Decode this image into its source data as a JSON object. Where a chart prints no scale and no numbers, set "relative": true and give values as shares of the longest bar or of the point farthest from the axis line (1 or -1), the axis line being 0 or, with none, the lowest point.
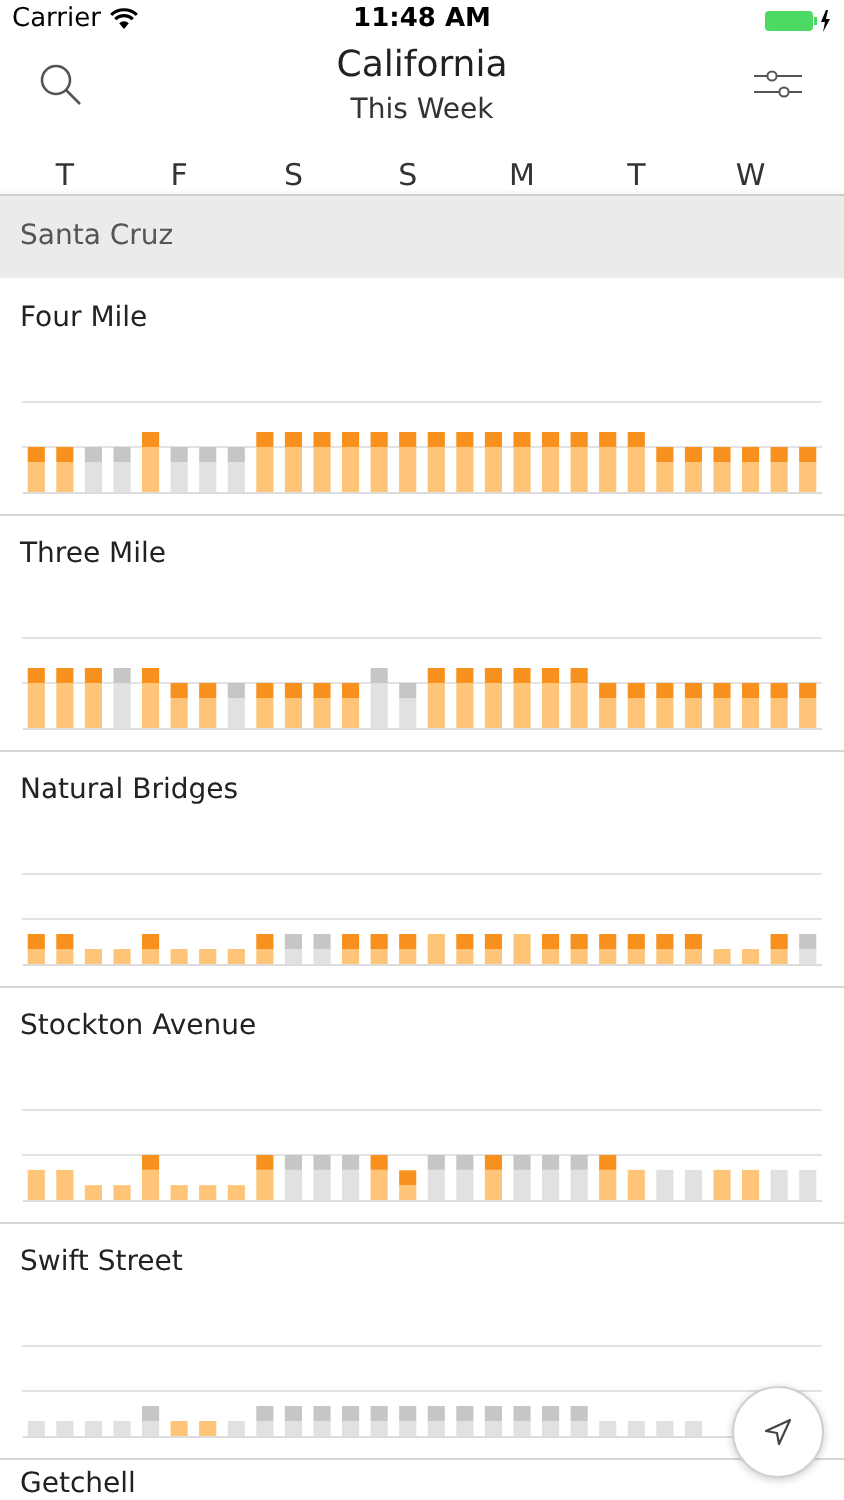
{
  "chart_data": [
    {
      "type": "other",
      "title": "California",
      "subtitle": "This Week",
      "annotations": [
        "Carrier",
        "11:48 AM",
        "Santa Cruz"
      ]
    },
    {
      "type": "bar",
      "title": "Four Mile",
      "relative": true,
      "stacked": true,
      "tick_labels": "x",
      "categories": [
        null,
        "T",
        null,
        null,
        null,
        "F",
        null,
        null,
        null,
        "S",
        null,
        null,
        null,
        "S",
        null,
        null,
        null,
        "M",
        null,
        null,
        null,
        "T",
        null,
        null,
        null,
        "W",
        null,
        null
      ],
      "ref_lines": [
        {
          "axis": "y",
          "value": 0.75,
          "color": "#e3e3e3"
        },
        {
          "axis": "y",
          "value": 1.5,
          "color": "#e3e3e3"
        }
      ],
      "series": [
        {
          "values": [
            0.5,
            0.5,
            0.5,
            0.5,
            0.75,
            0.5,
            0.5,
            0.5,
            0.75,
            0.75,
            0.75,
            0.75,
            0.75,
            0.75,
            0.75,
            0.75,
            0.75,
            0.75,
            0.75,
            0.75,
            0.75,
            0.75,
            0.5,
            0.5,
            0.5,
            0.5,
            0.5,
            0.5
          ],
          "colors": [
            "#fec477",
            "#fec477",
            "#e1e1e1",
            "#e1e1e1",
            "#fec477",
            "#e1e1e1",
            "#e1e1e1",
            "#e1e1e1",
            "#fec477",
            "#fec477",
            "#fec477",
            "#fec477",
            "#fec477",
            "#fec477",
            "#fec477",
            "#fec477",
            "#fec477",
            "#fec477",
            "#fec477",
            "#fec477",
            "#fec477",
            "#fec477",
            "#fec477",
            "#fec477",
            "#fec477",
            "#fec477",
            "#fec477",
            "#fec477"
          ]
        },
        {
          "values": [
            0.25,
            0.25,
            0.25,
            0.25,
            0.25,
            0.25,
            0.25,
            0.25,
            0.25,
            0.25,
            0.25,
            0.25,
            0.25,
            0.25,
            0.25,
            0.25,
            0.25,
            0.25,
            0.25,
            0.25,
            0.25,
            0.25,
            0.25,
            0.25,
            0.25,
            0.25,
            0.25,
            0.25
          ],
          "colors": [
            "#f8901d",
            "#f8901d",
            "#c6c6c6",
            "#c6c6c6",
            "#f8901d",
            "#c6c6c6",
            "#c6c6c6",
            "#c6c6c6",
            "#f8901d",
            "#f8901d",
            "#f8901d",
            "#f8901d",
            "#f8901d",
            "#f8901d",
            "#f8901d",
            "#f8901d",
            "#f8901d",
            "#f8901d",
            "#f8901d",
            "#f8901d",
            "#f8901d",
            "#f8901d",
            "#f8901d",
            "#f8901d",
            "#f8901d",
            "#f8901d",
            "#f8901d",
            "#f8901d"
          ]
        }
      ]
    },
    {
      "type": "bar",
      "title": "Three Mile",
      "relative": true,
      "stacked": true,
      "tick_labels": false,
      "categories": [
        null,
        null,
        null,
        null,
        null,
        null,
        null,
        null,
        null,
        null,
        null,
        null,
        null,
        null,
        null,
        null,
        null,
        null,
        null,
        null,
        null,
        null,
        null,
        null,
        null,
        null,
        null,
        null
      ],
      "ref_lines": [
        {
          "axis": "y",
          "value": 0.75,
          "color": "#e3e3e3"
        },
        {
          "axis": "y",
          "value": 1.5,
          "color": "#e3e3e3"
        }
      ],
      "series": [
        {
          "values": [
            0.75,
            0.75,
            0.75,
            0.75,
            0.75,
            0.5,
            0.5,
            0.5,
            0.5,
            0.5,
            0.5,
            0.5,
            0.75,
            0.5,
            0.75,
            0.75,
            0.75,
            0.75,
            0.75,
            0.75,
            0.5,
            0.5,
            0.5,
            0.5,
            0.5,
            0.5,
            0.5,
            0.5
          ],
          "colors": [
            "#fec477",
            "#fec477",
            "#fec477",
            "#e1e1e1",
            "#fec477",
            "#fec477",
            "#fec477",
            "#e1e1e1",
            "#fec477",
            "#fec477",
            "#fec477",
            "#fec477",
            "#e1e1e1",
            "#e1e1e1",
            "#fec477",
            "#fec477",
            "#fec477",
            "#fec477",
            "#fec477",
            "#fec477",
            "#fec477",
            "#fec477",
            "#fec477",
            "#fec477",
            "#fec477",
            "#fec477",
            "#fec477",
            "#fec477"
          ]
        },
        {
          "values": [
            0.25,
            0.25,
            0.25,
            0.25,
            0.25,
            0.25,
            0.25,
            0.25,
            0.25,
            0.25,
            0.25,
            0.25,
            0.25,
            0.25,
            0.25,
            0.25,
            0.25,
            0.25,
            0.25,
            0.25,
            0.25,
            0.25,
            0.25,
            0.25,
            0.25,
            0.25,
            0.25,
            0.25
          ],
          "colors": [
            "#f8901d",
            "#f8901d",
            "#f8901d",
            "#c6c6c6",
            "#f8901d",
            "#f8901d",
            "#f8901d",
            "#c6c6c6",
            "#f8901d",
            "#f8901d",
            "#f8901d",
            "#f8901d",
            "#c6c6c6",
            "#c6c6c6",
            "#f8901d",
            "#f8901d",
            "#f8901d",
            "#f8901d",
            "#f8901d",
            "#f8901d",
            "#f8901d",
            "#f8901d",
            "#f8901d",
            "#f8901d",
            "#f8901d",
            "#f8901d",
            "#f8901d",
            "#f8901d"
          ]
        }
      ]
    },
    {
      "type": "bar",
      "title": "Natural Bridges",
      "relative": true,
      "stacked": true,
      "tick_labels": false,
      "categories": [
        null,
        null,
        null,
        null,
        null,
        null,
        null,
        null,
        null,
        null,
        null,
        null,
        null,
        null,
        null,
        null,
        null,
        null,
        null,
        null,
        null,
        null,
        null,
        null,
        null,
        null,
        null,
        null
      ],
      "ref_lines": [
        {
          "axis": "y",
          "value": 1.5,
          "color": "#e3e3e3"
        },
        {
          "axis": "y",
          "value": 3,
          "color": "#e3e3e3"
        }
      ],
      "series": [
        {
          "values": [
            0.5,
            0.5,
            0.5,
            0.5,
            0.5,
            0.5,
            0.5,
            0.5,
            0.5,
            0.5,
            0.5,
            0.5,
            0.5,
            0.5,
            1,
            0.5,
            0.5,
            1,
            0.5,
            0.5,
            0.5,
            0.5,
            0.5,
            0.5,
            0.5,
            0.5,
            0.5,
            0.5
          ],
          "colors": [
            "#fec477",
            "#fec477",
            "#fec477",
            "#fec477",
            "#fec477",
            "#fec477",
            "#fec477",
            "#fec477",
            "#fec477",
            "#e1e1e1",
            "#e1e1e1",
            "#fec477",
            "#fec477",
            "#fec477",
            "#fec477",
            "#fec477",
            "#fec477",
            "#fec477",
            "#fec477",
            "#fec477",
            "#fec477",
            "#fec477",
            "#fec477",
            "#fec477",
            "#fec477",
            "#fec477",
            "#fec477",
            "#e1e1e1"
          ]
        },
        {
          "values": [
            0.5,
            0.5,
            null,
            null,
            0.5,
            null,
            null,
            null,
            0.5,
            0.5,
            0.5,
            0.5,
            0.5,
            0.5,
            null,
            0.5,
            0.5,
            null,
            0.5,
            0.5,
            0.5,
            0.5,
            0.5,
            0.5,
            null,
            null,
            0.5,
            0.5
          ],
          "colors": [
            "#f8901d",
            "#f8901d",
            null,
            null,
            "#f8901d",
            null,
            null,
            null,
            "#f8901d",
            "#c6c6c6",
            "#c6c6c6",
            "#f8901d",
            "#f8901d",
            "#f8901d",
            null,
            "#f8901d",
            "#f8901d",
            null,
            "#f8901d",
            "#f8901d",
            "#f8901d",
            "#f8901d",
            "#f8901d",
            "#f8901d",
            null,
            null,
            "#f8901d",
            "#c6c6c6"
          ]
        }
      ]
    },
    {
      "type": "bar",
      "title": "Stockton Avenue",
      "relative": true,
      "stacked": true,
      "tick_labels": false,
      "categories": [
        null,
        null,
        null,
        null,
        null,
        null,
        null,
        null,
        null,
        null,
        null,
        null,
        null,
        null,
        null,
        null,
        null,
        null,
        null,
        null,
        null,
        null,
        null,
        null,
        null,
        null,
        null,
        null
      ],
      "ref_lines": [
        {
          "axis": "y",
          "value": 1,
          "color": "#e3e3e3"
        },
        {
          "axis": "y",
          "value": 2,
          "color": "#e3e3e3"
        }
      ],
      "series": [
        {
          "values": [
            0.67,
            0.67,
            0.33,
            0.33,
            0.67,
            0.33,
            0.33,
            0.33,
            0.67,
            0.67,
            0.67,
            0.67,
            0.67,
            0.33,
            0.67,
            0.67,
            0.67,
            0.67,
            0.67,
            0.67,
            0.67,
            0.67,
            0.67,
            0.67,
            0.67,
            0.67,
            0.67,
            0.67
          ],
          "colors": [
            "#fec477",
            "#fec477",
            "#fec477",
            "#fec477",
            "#fec477",
            "#fec477",
            "#fec477",
            "#fec477",
            "#fec477",
            "#e1e1e1",
            "#e1e1e1",
            "#e1e1e1",
            "#fec477",
            "#fec477",
            "#e1e1e1",
            "#e1e1e1",
            "#fec477",
            "#e1e1e1",
            "#e1e1e1",
            "#e1e1e1",
            "#fec477",
            "#fec477",
            "#e1e1e1",
            "#e1e1e1",
            "#fec477",
            "#fec477",
            "#e1e1e1",
            "#e1e1e1"
          ]
        },
        {
          "values": [
            null,
            null,
            null,
            null,
            0.33,
            null,
            null,
            null,
            0.33,
            0.33,
            0.33,
            0.33,
            0.33,
            0.33,
            0.33,
            0.33,
            0.33,
            0.33,
            0.33,
            0.33,
            0.33,
            null,
            null,
            null,
            null,
            null,
            null,
            null
          ],
          "colors": [
            null,
            null,
            null,
            null,
            "#f8901d",
            null,
            null,
            null,
            "#f8901d",
            "#c6c6c6",
            "#c6c6c6",
            "#c6c6c6",
            "#f8901d",
            "#f8901d",
            "#c6c6c6",
            "#c6c6c6",
            "#f8901d",
            "#c6c6c6",
            "#c6c6c6",
            "#c6c6c6",
            "#f8901d",
            null,
            null,
            null,
            null,
            null,
            null,
            null
          ]
        }
      ]
    },
    {
      "type": "bar",
      "title": "Swift Street",
      "relative": true,
      "stacked": true,
      "tick_labels": false,
      "categories": [
        null,
        null,
        null,
        null,
        null,
        null,
        null,
        null,
        null,
        null,
        null,
        null,
        null,
        null,
        null,
        null,
        null,
        null,
        null,
        null,
        null,
        null,
        null,
        null,
        null,
        null,
        null,
        null
      ],
      "ref_lines": [
        {
          "axis": "y",
          "value": 1.5,
          "color": "#e3e3e3"
        },
        {
          "axis": "y",
          "value": 3,
          "color": "#e3e3e3"
        }
      ],
      "series": [
        {
          "values": [
            0.5,
            0.5,
            0.5,
            0.5,
            0.5,
            0.5,
            0.5,
            0.5,
            0.5,
            0.5,
            0.5,
            0.5,
            0.5,
            0.5,
            0.5,
            0.5,
            0.5,
            0.5,
            0.5,
            0.5,
            0.5,
            0.5,
            0.5,
            0.5,
            null,
            null,
            null,
            null
          ],
          "colors": [
            "#e1e1e1",
            "#e1e1e1",
            "#e1e1e1",
            "#e1e1e1",
            "#e1e1e1",
            "#fec477",
            "#fec477",
            "#e1e1e1",
            "#e1e1e1",
            "#e1e1e1",
            "#e1e1e1",
            "#e1e1e1",
            "#e1e1e1",
            "#e1e1e1",
            "#e1e1e1",
            "#e1e1e1",
            "#e1e1e1",
            "#e1e1e1",
            "#e1e1e1",
            "#e1e1e1",
            "#e1e1e1",
            "#e1e1e1",
            "#e1e1e1",
            "#e1e1e1",
            null,
            null,
            null,
            null
          ]
        },
        {
          "values": [
            null,
            null,
            null,
            null,
            0.5,
            null,
            null,
            null,
            0.5,
            0.5,
            0.5,
            0.5,
            0.5,
            0.5,
            0.5,
            0.5,
            0.5,
            0.5,
            0.5,
            0.5,
            null,
            null,
            null,
            null,
            null,
            null,
            null,
            null
          ],
          "colors": [
            null,
            null,
            null,
            null,
            "#c6c6c6",
            null,
            null,
            null,
            "#c6c6c6",
            "#c6c6c6",
            "#c6c6c6",
            "#c6c6c6",
            "#c6c6c6",
            "#c6c6c6",
            "#c6c6c6",
            "#c6c6c6",
            "#c6c6c6",
            "#c6c6c6",
            "#c6c6c6",
            "#c6c6c6",
            null,
            null,
            null,
            null,
            null,
            null,
            null,
            null
          ]
        }
      ]
    },
    {
      "type": "other",
      "title": "Getchell"
    }
  ]
}
